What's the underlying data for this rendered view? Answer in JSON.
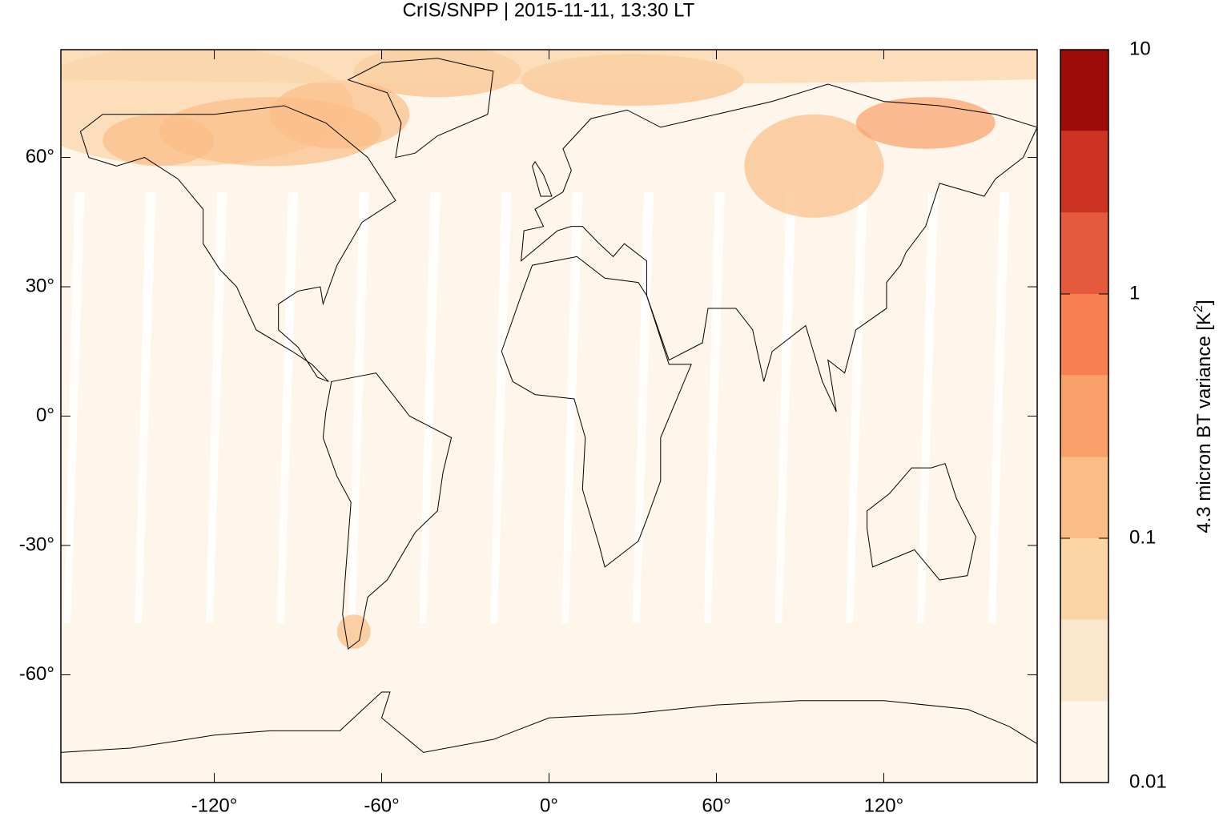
{
  "chart_data": {
    "type": "map",
    "title": "CrIS/SNPP | 2015-11-11, 13:30 LT",
    "xlim": [
      -175,
      175
    ],
    "ylim": [
      -85,
      85
    ],
    "xticks": [
      {
        "value": -120,
        "label": "-120°"
      },
      {
        "value": -60,
        "label": "-60°"
      },
      {
        "value": 0,
        "label": "0°"
      },
      {
        "value": 60,
        "label": "60°"
      },
      {
        "value": 120,
        "label": "120°"
      }
    ],
    "yticks": [
      {
        "value": 60,
        "label": "60°"
      },
      {
        "value": 30,
        "label": "30°"
      },
      {
        "value": 0,
        "label": "0°"
      },
      {
        "value": -30,
        "label": "-30°"
      },
      {
        "value": -60,
        "label": "-60°"
      }
    ],
    "colorbar": {
      "log_scale": true,
      "lim": [
        0.01,
        10
      ],
      "ticks": [
        10,
        1,
        0.1,
        0.01
      ],
      "levels": [
        0.01,
        0.0215,
        0.0464,
        0.1,
        0.215,
        0.464,
        1,
        2.15,
        4.64,
        10
      ],
      "colors": [
        "#fef6eb",
        "#fbe7cb",
        "#fbd4a6",
        "#fbbd86",
        "#f9a06a",
        "#f6804f",
        "#e55a3d",
        "#cc3322",
        "#9e0a07"
      ],
      "label": [
        "4.3 micron BT variance [K",
        "2",
        "]"
      ]
    }
  }
}
